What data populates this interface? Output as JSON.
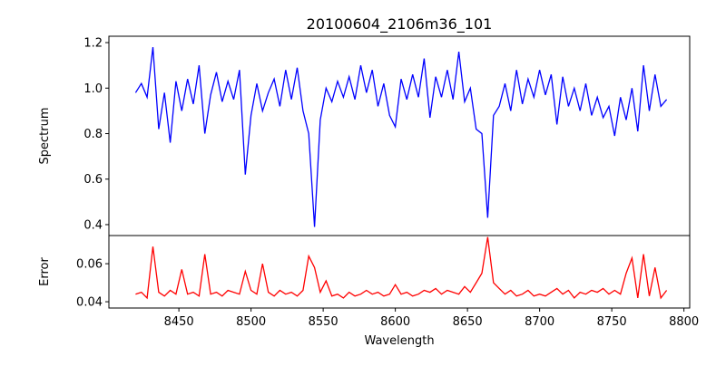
{
  "chart_data": [
    {
      "type": "line",
      "title": "20100604_2106m36_101",
      "xlabel": "",
      "ylabel": "Spectrum",
      "xlim": [
        8401.5,
        8804
      ],
      "ylim": [
        0.352,
        1.228
      ],
      "yticks": [
        "0.4",
        "0.6",
        "0.8",
        "1.0",
        "1.2"
      ],
      "ytick_values": [
        0.4,
        0.6,
        0.8,
        1.0,
        1.2
      ],
      "color": "#0000ff",
      "x_start": 8420,
      "x_step": 4,
      "values": [
        0.98,
        1.02,
        0.96,
        1.18,
        0.82,
        0.98,
        0.76,
        1.03,
        0.9,
        1.04,
        0.93,
        1.1,
        0.8,
        0.97,
        1.07,
        0.94,
        1.03,
        0.95,
        1.08,
        0.62,
        0.88,
        1.02,
        0.9,
        0.98,
        1.04,
        0.92,
        1.08,
        0.95,
        1.09,
        0.9,
        0.8,
        0.39,
        0.86,
        1.0,
        0.94,
        1.03,
        0.96,
        1.05,
        0.95,
        1.1,
        0.98,
        1.08,
        0.92,
        1.02,
        0.88,
        0.83,
        1.04,
        0.95,
        1.06,
        0.96,
        1.13,
        0.87,
        1.05,
        0.96,
        1.08,
        0.95,
        1.16,
        0.94,
        1.0,
        0.82,
        0.8,
        0.43,
        0.88,
        0.92,
        1.02,
        0.9,
        1.08,
        0.93,
        1.04,
        0.96,
        1.08,
        0.97,
        1.06,
        0.84,
        1.05,
        0.92,
        1.0,
        0.9,
        1.02,
        0.88,
        0.96,
        0.87,
        0.92,
        0.79,
        0.96,
        0.86,
        1.0,
        0.81,
        1.1,
        0.9,
        1.06,
        0.92,
        0.95
      ]
    },
    {
      "type": "line",
      "xlabel": "Wavelength",
      "ylabel": "Error",
      "xlim": [
        8401.5,
        8804
      ],
      "ylim": [
        0.0367,
        0.0748
      ],
      "xticks": [
        "8450",
        "8500",
        "8550",
        "8600",
        "8650",
        "8700",
        "8750",
        "8800"
      ],
      "xtick_values": [
        8450,
        8500,
        8550,
        8600,
        8650,
        8700,
        8750,
        8800
      ],
      "yticks": [
        "0.04",
        "0.06"
      ],
      "ytick_values": [
        0.04,
        0.06
      ],
      "color": "#ff0000",
      "x_start": 8420,
      "x_step": 4,
      "values": [
        0.044,
        0.045,
        0.042,
        0.069,
        0.045,
        0.043,
        0.046,
        0.044,
        0.057,
        0.044,
        0.045,
        0.043,
        0.065,
        0.044,
        0.045,
        0.043,
        0.046,
        0.045,
        0.044,
        0.056,
        0.046,
        0.044,
        0.06,
        0.045,
        0.043,
        0.046,
        0.044,
        0.045,
        0.043,
        0.046,
        0.064,
        0.058,
        0.045,
        0.051,
        0.043,
        0.044,
        0.042,
        0.045,
        0.043,
        0.044,
        0.046,
        0.044,
        0.045,
        0.043,
        0.044,
        0.049,
        0.044,
        0.045,
        0.043,
        0.044,
        0.046,
        0.045,
        0.047,
        0.044,
        0.046,
        0.045,
        0.044,
        0.048,
        0.045,
        0.05,
        0.055,
        0.074,
        0.05,
        0.047,
        0.044,
        0.046,
        0.043,
        0.044,
        0.046,
        0.043,
        0.044,
        0.043,
        0.045,
        0.047,
        0.044,
        0.046,
        0.042,
        0.045,
        0.044,
        0.046,
        0.045,
        0.047,
        0.044,
        0.046,
        0.044,
        0.055,
        0.063,
        0.042,
        0.065,
        0.043,
        0.058,
        0.042,
        0.046
      ]
    }
  ]
}
